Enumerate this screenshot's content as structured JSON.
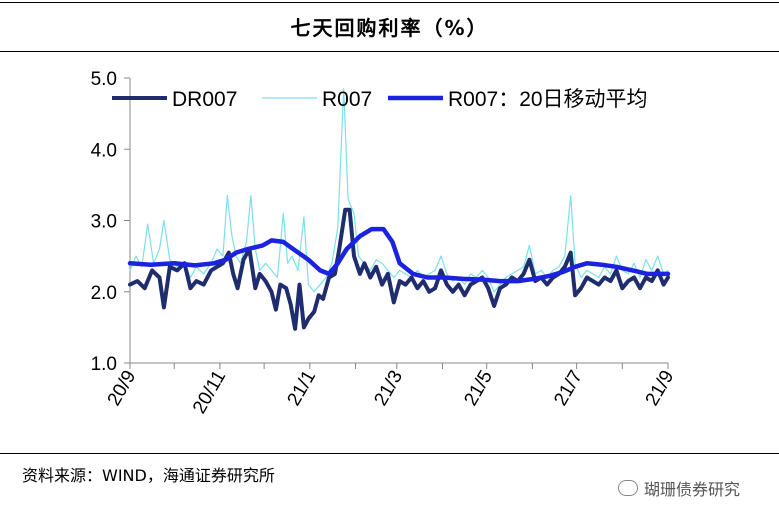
{
  "title": "七天回购利率（%）",
  "source": "资料来源：WIND，海通证券研究所",
  "watermark": "瑚珊债券研究",
  "chart_data": {
    "type": "line",
    "ylim": [
      1.0,
      5.0
    ],
    "y_ticks": [
      "1.0",
      "2.0",
      "3.0",
      "4.0",
      "5.0"
    ],
    "x_ticks": [
      "20/9",
      "20/11",
      "21/1",
      "21/3",
      "21/5",
      "21/7",
      "21/9"
    ],
    "xlim": [
      "2020-09-01",
      "2021-09-01"
    ],
    "grid": false,
    "legend": "top",
    "colors": {
      "dr007": "#1f2d6e",
      "r007": "#7ae0ea",
      "ma20": "#1b22e0"
    },
    "series": [
      {
        "name": "DR007",
        "key": "dr007",
        "points": [
          [
            "2020-09-01",
            2.1
          ],
          [
            "2020-09-06",
            2.15
          ],
          [
            "2020-09-11",
            2.05
          ],
          [
            "2020-09-16",
            2.3
          ],
          [
            "2020-09-21",
            2.2
          ],
          [
            "2020-09-24",
            1.78
          ],
          [
            "2020-09-28",
            2.35
          ],
          [
            "2020-10-03",
            2.3
          ],
          [
            "2020-10-08",
            2.4
          ],
          [
            "2020-10-12",
            2.05
          ],
          [
            "2020-10-16",
            2.15
          ],
          [
            "2020-10-21",
            2.1
          ],
          [
            "2020-10-26",
            2.3
          ],
          [
            "2020-10-30",
            2.35
          ],
          [
            "2020-11-03",
            2.4
          ],
          [
            "2020-11-07",
            2.55
          ],
          [
            "2020-11-10",
            2.25
          ],
          [
            "2020-11-13",
            2.05
          ],
          [
            "2020-11-17",
            2.45
          ],
          [
            "2020-11-21",
            2.6
          ],
          [
            "2020-11-25",
            2.05
          ],
          [
            "2020-11-28",
            2.25
          ],
          [
            "2020-12-02",
            2.15
          ],
          [
            "2020-12-06",
            2.0
          ],
          [
            "2020-12-09",
            1.75
          ],
          [
            "2020-12-12",
            2.1
          ],
          [
            "2020-12-16",
            2.05
          ],
          [
            "2020-12-19",
            1.82
          ],
          [
            "2020-12-22",
            1.48
          ],
          [
            "2020-12-25",
            2.1
          ],
          [
            "2020-12-28",
            1.5
          ],
          [
            "2020-12-31",
            1.62
          ],
          [
            "2021-01-04",
            1.72
          ],
          [
            "2021-01-07",
            1.95
          ],
          [
            "2021-01-10",
            1.9
          ],
          [
            "2021-01-14",
            2.2
          ],
          [
            "2021-01-18",
            2.25
          ],
          [
            "2021-01-21",
            2.6
          ],
          [
            "2021-01-25",
            3.15
          ],
          [
            "2021-01-28",
            3.15
          ],
          [
            "2021-01-31",
            2.5
          ],
          [
            "2021-02-04",
            2.25
          ],
          [
            "2021-02-07",
            2.4
          ],
          [
            "2021-02-11",
            2.2
          ],
          [
            "2021-02-15",
            2.35
          ],
          [
            "2021-02-19",
            2.1
          ],
          [
            "2021-02-23",
            2.25
          ],
          [
            "2021-02-27",
            1.85
          ],
          [
            "2021-03-03",
            2.15
          ],
          [
            "2021-03-07",
            2.1
          ],
          [
            "2021-03-11",
            2.2
          ],
          [
            "2021-03-15",
            2.05
          ],
          [
            "2021-03-19",
            2.15
          ],
          [
            "2021-03-23",
            2.0
          ],
          [
            "2021-03-27",
            2.05
          ],
          [
            "2021-03-31",
            2.3
          ],
          [
            "2021-04-04",
            2.1
          ],
          [
            "2021-04-08",
            2.0
          ],
          [
            "2021-04-12",
            2.1
          ],
          [
            "2021-04-16",
            1.95
          ],
          [
            "2021-04-20",
            2.1
          ],
          [
            "2021-04-24",
            2.15
          ],
          [
            "2021-04-28",
            2.2
          ],
          [
            "2021-05-02",
            2.05
          ],
          [
            "2021-05-06",
            1.8
          ],
          [
            "2021-05-10",
            2.05
          ],
          [
            "2021-05-14",
            2.1
          ],
          [
            "2021-05-18",
            2.2
          ],
          [
            "2021-05-22",
            2.15
          ],
          [
            "2021-05-26",
            2.25
          ],
          [
            "2021-05-30",
            2.45
          ],
          [
            "2021-06-03",
            2.15
          ],
          [
            "2021-06-07",
            2.2
          ],
          [
            "2021-06-11",
            2.1
          ],
          [
            "2021-06-15",
            2.2
          ],
          [
            "2021-06-19",
            2.25
          ],
          [
            "2021-06-23",
            2.35
          ],
          [
            "2021-06-27",
            2.55
          ],
          [
            "2021-06-30",
            1.95
          ],
          [
            "2021-07-04",
            2.05
          ],
          [
            "2021-07-08",
            2.2
          ],
          [
            "2021-07-12",
            2.15
          ],
          [
            "2021-07-16",
            2.1
          ],
          [
            "2021-07-20",
            2.2
          ],
          [
            "2021-07-24",
            2.15
          ],
          [
            "2021-07-28",
            2.3
          ],
          [
            "2021-08-01",
            2.05
          ],
          [
            "2021-08-05",
            2.15
          ],
          [
            "2021-08-09",
            2.2
          ],
          [
            "2021-08-13",
            2.05
          ],
          [
            "2021-08-17",
            2.2
          ],
          [
            "2021-08-21",
            2.15
          ],
          [
            "2021-08-25",
            2.3
          ],
          [
            "2021-08-29",
            2.1
          ],
          [
            "2021-09-01",
            2.2
          ]
        ]
      },
      {
        "name": "R007",
        "key": "r007",
        "points": [
          [
            "2020-09-01",
            2.3
          ],
          [
            "2020-09-05",
            2.5
          ],
          [
            "2020-09-09",
            2.35
          ],
          [
            "2020-09-13",
            2.95
          ],
          [
            "2020-09-17",
            2.4
          ],
          [
            "2020-09-21",
            2.6
          ],
          [
            "2020-09-24",
            3.0
          ],
          [
            "2020-09-28",
            2.45
          ],
          [
            "2020-10-03",
            2.35
          ],
          [
            "2020-10-08",
            2.4
          ],
          [
            "2020-10-12",
            2.2
          ],
          [
            "2020-10-16",
            2.35
          ],
          [
            "2020-10-21",
            2.25
          ],
          [
            "2020-10-26",
            2.4
          ],
          [
            "2020-10-30",
            2.6
          ],
          [
            "2020-11-03",
            2.5
          ],
          [
            "2020-11-06",
            3.35
          ],
          [
            "2020-11-09",
            2.8
          ],
          [
            "2020-11-12",
            2.5
          ],
          [
            "2020-11-15",
            2.4
          ],
          [
            "2020-11-19",
            2.7
          ],
          [
            "2020-11-22",
            3.35
          ],
          [
            "2020-11-25",
            2.6
          ],
          [
            "2020-11-28",
            2.3
          ],
          [
            "2020-12-02",
            2.4
          ],
          [
            "2020-12-06",
            2.3
          ],
          [
            "2020-12-10",
            2.2
          ],
          [
            "2020-12-14",
            3.1
          ],
          [
            "2020-12-17",
            2.4
          ],
          [
            "2020-12-20",
            2.5
          ],
          [
            "2020-12-24",
            2.3
          ],
          [
            "2020-12-28",
            3.05
          ],
          [
            "2020-12-31",
            2.1
          ],
          [
            "2021-01-04",
            2.0
          ],
          [
            "2021-01-08",
            2.1
          ],
          [
            "2021-01-12",
            2.2
          ],
          [
            "2021-01-16",
            2.4
          ],
          [
            "2021-01-20",
            2.9
          ],
          [
            "2021-01-24",
            4.85
          ],
          [
            "2021-01-27",
            3.3
          ],
          [
            "2021-01-31",
            3.1
          ],
          [
            "2021-02-03",
            2.5
          ],
          [
            "2021-02-07",
            2.4
          ],
          [
            "2021-02-11",
            2.3
          ],
          [
            "2021-02-15",
            2.45
          ],
          [
            "2021-02-19",
            2.4
          ],
          [
            "2021-02-23",
            2.3
          ],
          [
            "2021-02-27",
            2.2
          ],
          [
            "2021-03-03",
            2.3
          ],
          [
            "2021-03-07",
            2.25
          ],
          [
            "2021-03-11",
            2.2
          ],
          [
            "2021-03-15",
            2.3
          ],
          [
            "2021-03-19",
            2.2
          ],
          [
            "2021-03-23",
            2.25
          ],
          [
            "2021-03-27",
            2.3
          ],
          [
            "2021-03-31",
            2.5
          ],
          [
            "2021-04-04",
            2.25
          ],
          [
            "2021-04-08",
            2.15
          ],
          [
            "2021-04-12",
            2.2
          ],
          [
            "2021-04-16",
            2.1
          ],
          [
            "2021-04-20",
            2.25
          ],
          [
            "2021-04-24",
            2.2
          ],
          [
            "2021-04-28",
            2.3
          ],
          [
            "2021-05-02",
            2.2
          ],
          [
            "2021-05-06",
            2.0
          ],
          [
            "2021-05-10",
            2.1
          ],
          [
            "2021-05-14",
            2.2
          ],
          [
            "2021-05-18",
            2.25
          ],
          [
            "2021-05-22",
            2.3
          ],
          [
            "2021-05-26",
            2.35
          ],
          [
            "2021-05-30",
            2.65
          ],
          [
            "2021-06-03",
            2.25
          ],
          [
            "2021-06-07",
            2.3
          ],
          [
            "2021-06-11",
            2.2
          ],
          [
            "2021-06-15",
            2.3
          ],
          [
            "2021-06-19",
            2.35
          ],
          [
            "2021-06-23",
            2.5
          ],
          [
            "2021-06-27",
            3.35
          ],
          [
            "2021-06-30",
            2.4
          ],
          [
            "2021-07-04",
            2.2
          ],
          [
            "2021-07-08",
            2.3
          ],
          [
            "2021-07-12",
            2.25
          ],
          [
            "2021-07-16",
            2.2
          ],
          [
            "2021-07-20",
            2.35
          ],
          [
            "2021-07-24",
            2.25
          ],
          [
            "2021-07-28",
            2.5
          ],
          [
            "2021-08-01",
            2.3
          ],
          [
            "2021-08-05",
            2.25
          ],
          [
            "2021-08-09",
            2.4
          ],
          [
            "2021-08-13",
            2.2
          ],
          [
            "2021-08-17",
            2.45
          ],
          [
            "2021-08-21",
            2.3
          ],
          [
            "2021-08-25",
            2.5
          ],
          [
            "2021-08-29",
            2.25
          ],
          [
            "2021-09-01",
            2.3
          ]
        ]
      },
      {
        "name": "R007：20日移动平均",
        "key": "ma20",
        "points": [
          [
            "2020-09-01",
            2.4
          ],
          [
            "2020-09-15",
            2.38
          ],
          [
            "2020-10-01",
            2.4
          ],
          [
            "2020-10-15",
            2.37
          ],
          [
            "2020-10-28",
            2.4
          ],
          [
            "2020-11-05",
            2.45
          ],
          [
            "2020-11-12",
            2.55
          ],
          [
            "2020-11-20",
            2.6
          ],
          [
            "2020-11-30",
            2.65
          ],
          [
            "2020-12-06",
            2.72
          ],
          [
            "2020-12-14",
            2.7
          ],
          [
            "2020-12-22",
            2.58
          ],
          [
            "2020-12-31",
            2.45
          ],
          [
            "2021-01-08",
            2.3
          ],
          [
            "2021-01-14",
            2.25
          ],
          [
            "2021-01-20",
            2.4
          ],
          [
            "2021-01-26",
            2.6
          ],
          [
            "2021-02-04",
            2.78
          ],
          [
            "2021-02-12",
            2.88
          ],
          [
            "2021-02-20",
            2.88
          ],
          [
            "2021-02-26",
            2.7
          ],
          [
            "2021-03-03",
            2.4
          ],
          [
            "2021-03-12",
            2.25
          ],
          [
            "2021-03-22",
            2.2
          ],
          [
            "2021-04-02",
            2.2
          ],
          [
            "2021-04-15",
            2.18
          ],
          [
            "2021-04-28",
            2.17
          ],
          [
            "2021-05-10",
            2.15
          ],
          [
            "2021-05-22",
            2.15
          ],
          [
            "2021-06-02",
            2.18
          ],
          [
            "2021-06-12",
            2.22
          ],
          [
            "2021-06-22",
            2.28
          ],
          [
            "2021-06-30",
            2.35
          ],
          [
            "2021-07-08",
            2.4
          ],
          [
            "2021-07-18",
            2.38
          ],
          [
            "2021-07-28",
            2.35
          ],
          [
            "2021-08-08",
            2.3
          ],
          [
            "2021-08-18",
            2.25
          ],
          [
            "2021-09-01",
            2.25
          ]
        ]
      }
    ]
  }
}
